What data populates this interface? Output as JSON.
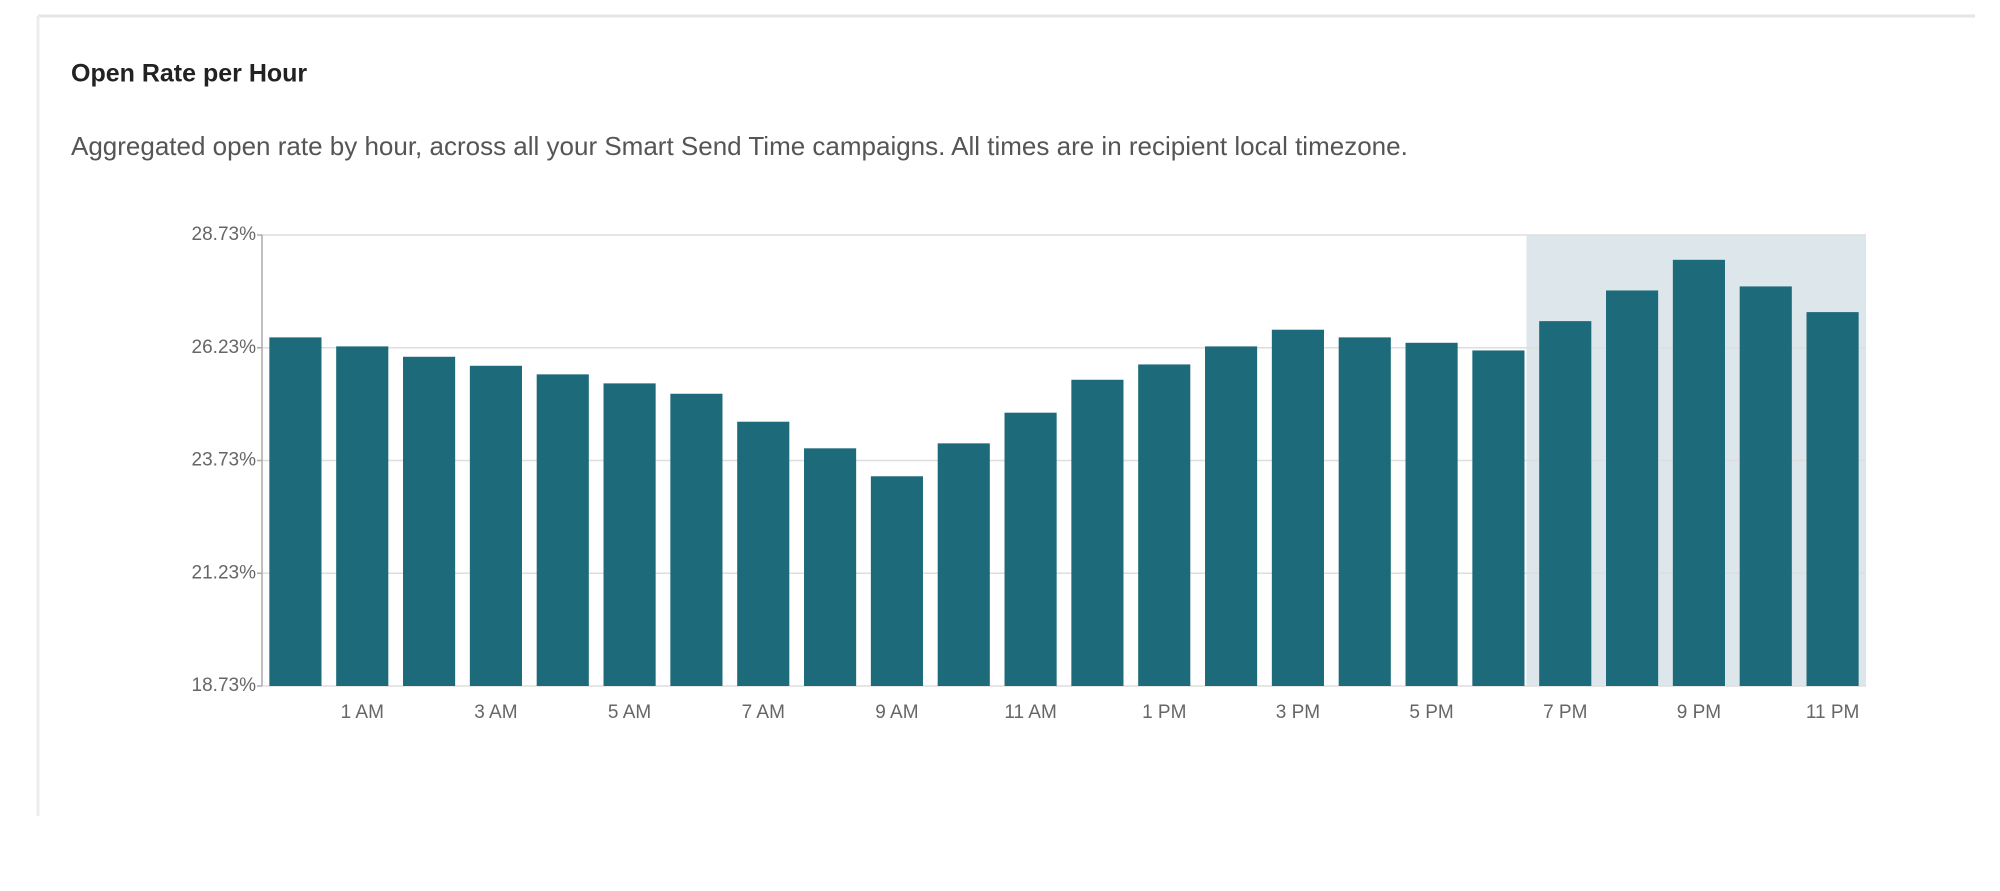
{
  "chart_data": {
    "type": "bar",
    "title": "Open Rate per Hour",
    "subtitle": "Aggregated open rate by hour, across all your Smart Send Time campaigns. All times are in recipient local timezone.",
    "categories": [
      null,
      "1 AM",
      null,
      "3 AM",
      null,
      "5 AM",
      null,
      "7 AM",
      null,
      "9 AM",
      null,
      "11 AM",
      null,
      "1 PM",
      null,
      "3 PM",
      null,
      "5 PM",
      null,
      "7 PM",
      null,
      "9 PM",
      null,
      "11 PM"
    ],
    "values": [
      26.46,
      26.26,
      26.03,
      25.83,
      25.64,
      25.44,
      25.21,
      24.59,
      24.0,
      23.38,
      24.11,
      24.79,
      25.52,
      25.86,
      26.26,
      26.63,
      26.46,
      26.34,
      26.17,
      26.82,
      27.5,
      28.18,
      27.59,
      27.02
    ],
    "color": "#1c6a7a",
    "ylim": [
      18.73,
      28.73
    ],
    "yticks": [
      {
        "value": 18.73,
        "label": "18.73%"
      },
      {
        "value": 21.23,
        "label": "21.23%"
      },
      {
        "value": 23.73,
        "label": "23.73%"
      },
      {
        "value": 26.23,
        "label": "26.23%"
      },
      {
        "value": 28.73,
        "label": "28.73%"
      }
    ],
    "grid": true,
    "highlight": {
      "start": 19,
      "end": 23,
      "color": "#dde6ea"
    }
  }
}
